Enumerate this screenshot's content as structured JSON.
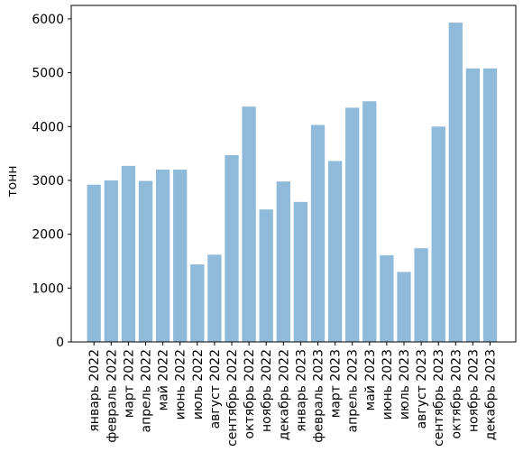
{
  "chart_data": {
    "type": "bar",
    "title": "",
    "xlabel": "",
    "ylabel": "тонн",
    "ylim": [
      0,
      6250
    ],
    "yticks": [
      0,
      1000,
      2000,
      3000,
      4000,
      5000,
      6000
    ],
    "grid": false,
    "bar_color": "#8fbad9",
    "categories": [
      "январь 2022",
      "февраль 2022",
      "март 2022",
      "апрель 2022",
      "май 2022",
      "июнь 2022",
      "июль 2022",
      "август 2022",
      "сентябрь 2022",
      "октябрь 2022",
      "ноябрь 2022",
      "декабрь 2022",
      "январь 2023",
      "февраль 2023",
      "март 2023",
      "апрель 2023",
      "май 2023",
      "июнь 2023",
      "июль 2023",
      "август 2023",
      "сентябрь 2023",
      "октябрь 2023",
      "ноябрь 2023",
      "декабрь 2023"
    ],
    "values": [
      2920,
      3000,
      3270,
      2990,
      3200,
      3200,
      1440,
      1620,
      3470,
      4370,
      2460,
      2980,
      2600,
      4030,
      3360,
      4350,
      4470,
      1610,
      1300,
      1740,
      4000,
      5930,
      5080,
      5080
    ]
  }
}
